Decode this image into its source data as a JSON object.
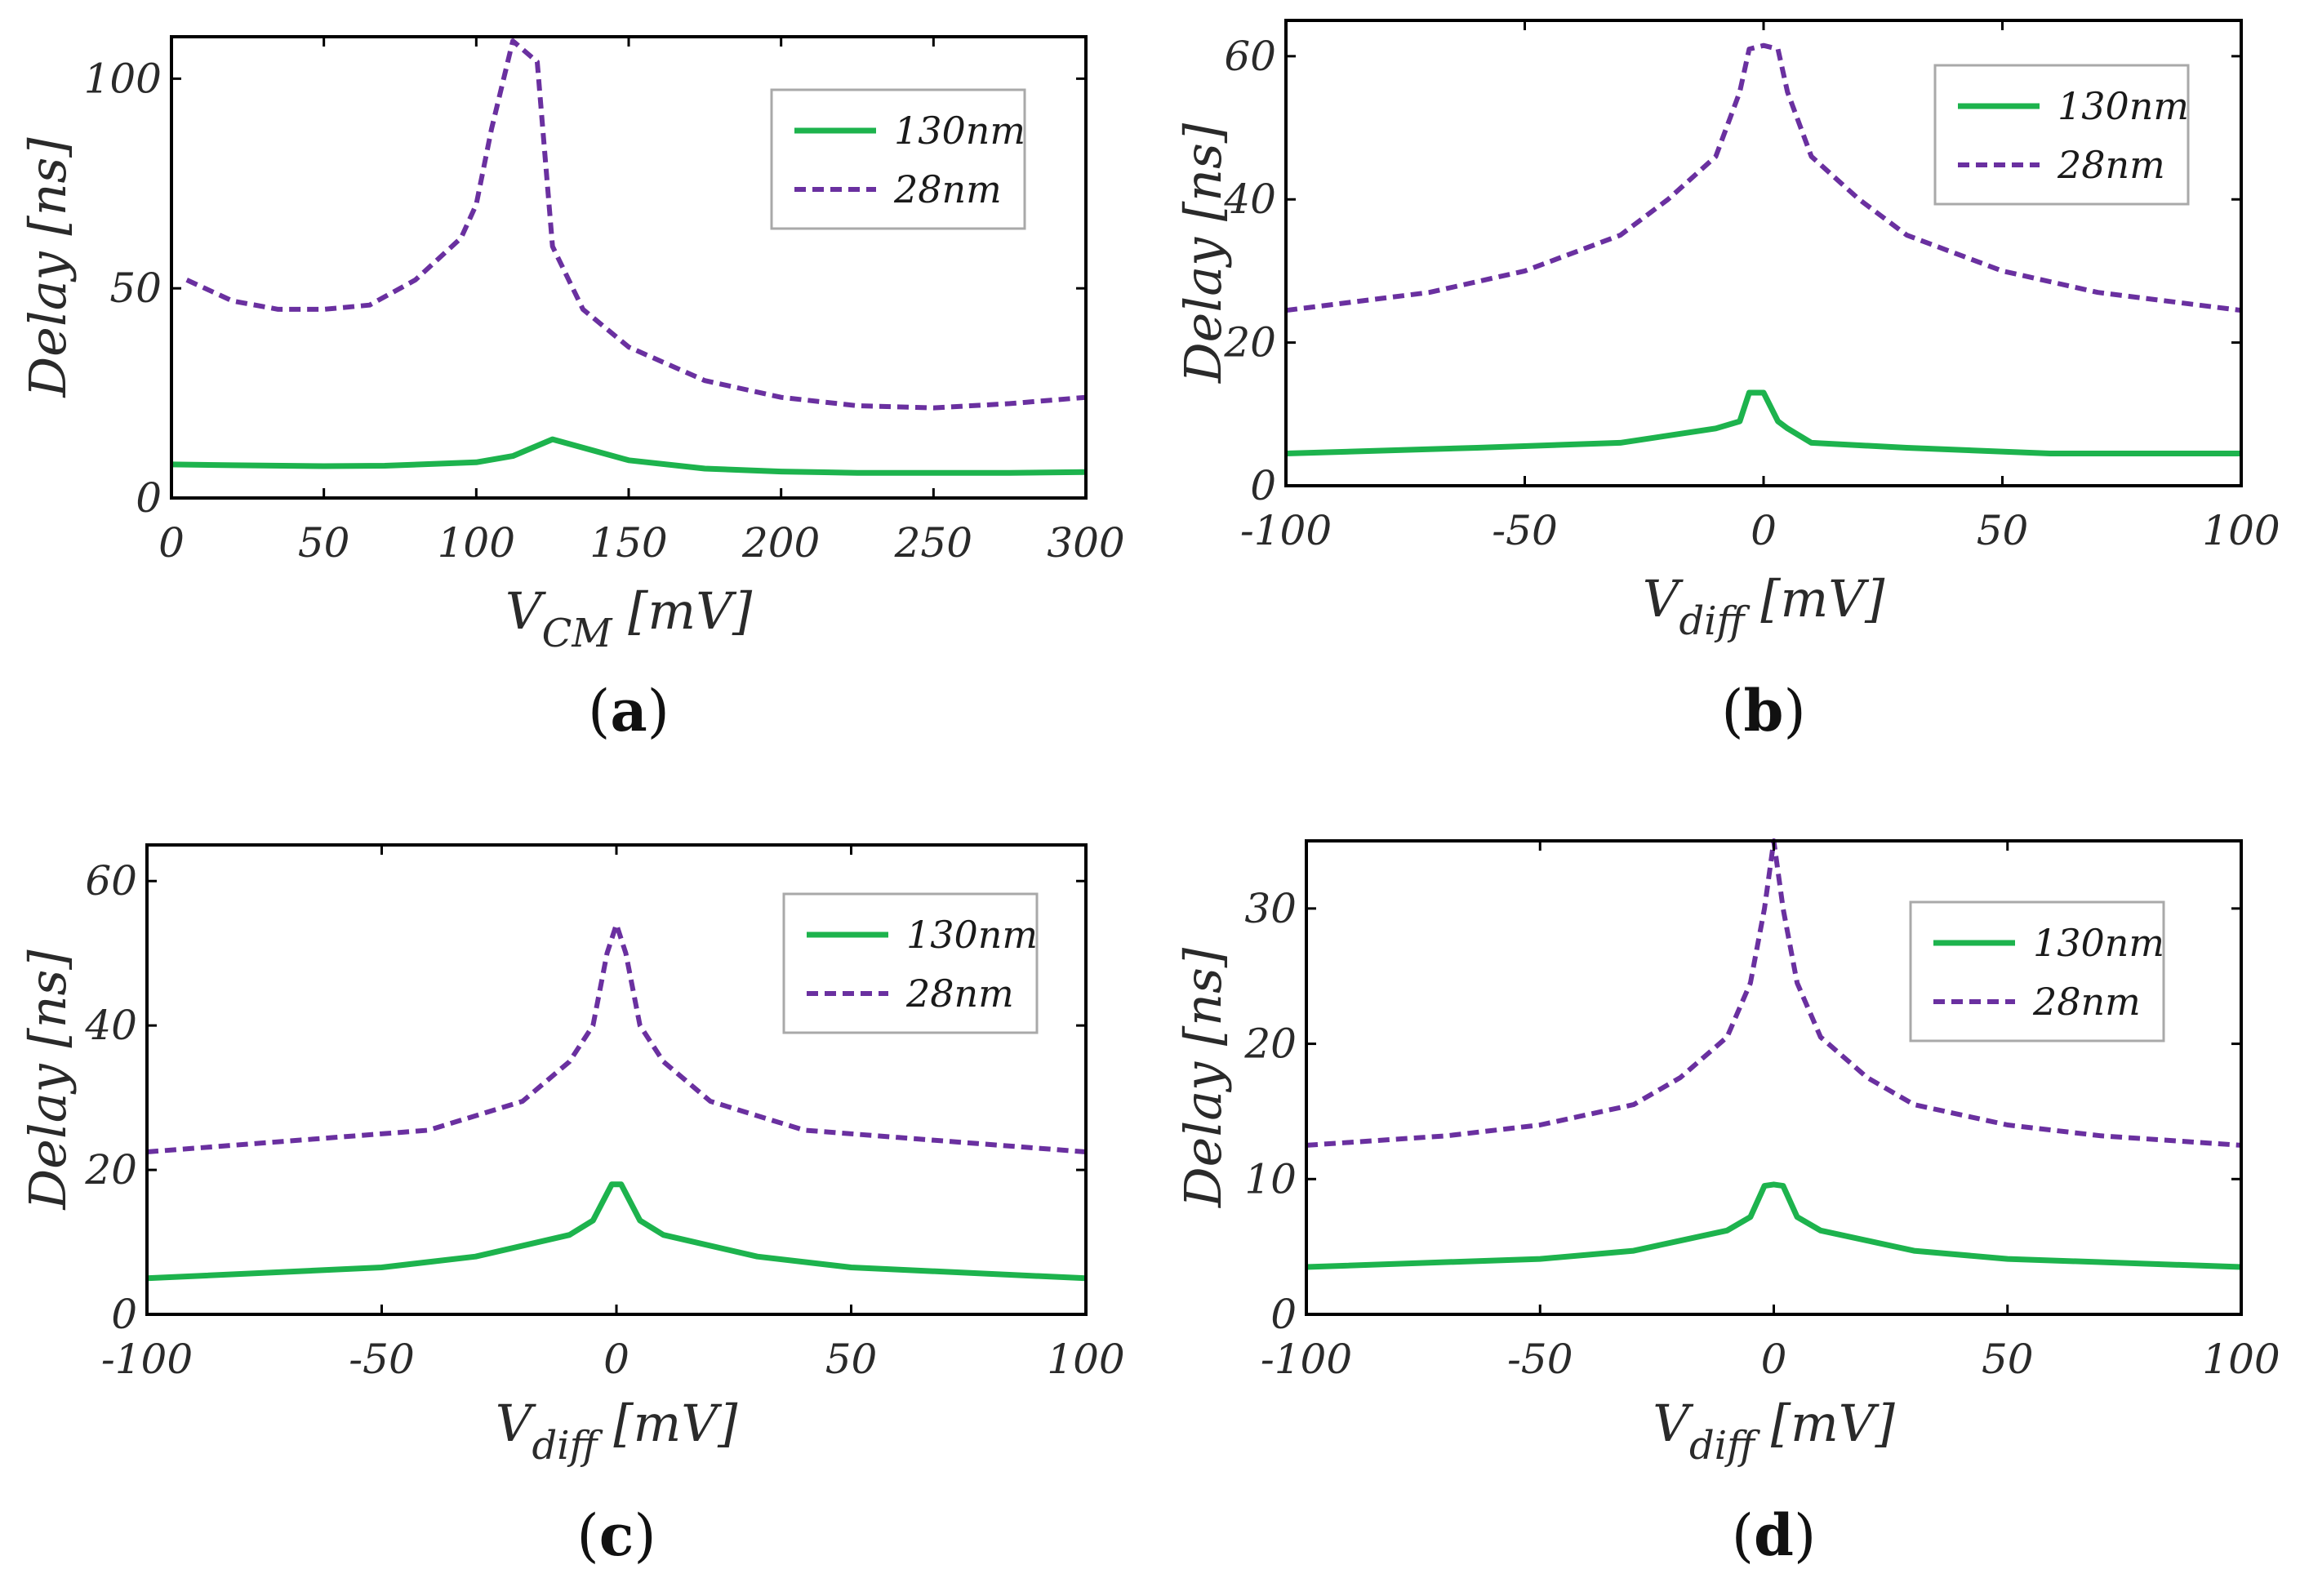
{
  "colors": {
    "s130": "#1db34d",
    "s28": "#6a30a0"
  },
  "chart_data": [
    {
      "panel": "(a)",
      "panel_letter": "a",
      "type": "line",
      "ylabel": "Delay [ns]",
      "xlabel_main": "V",
      "xlabel_sub": "CM",
      "xlabel_unit": " [mV]",
      "xlim": [
        0,
        300
      ],
      "ylim": [
        0,
        110
      ],
      "xticks": [
        0,
        50,
        100,
        150,
        200,
        250,
        300
      ],
      "xtick_labels": [
        "0",
        "50",
        "100",
        "150",
        "200",
        "250",
        "300"
      ],
      "yticks": [
        0,
        50,
        100
      ],
      "ytick_labels": [
        "0",
        "50",
        "100"
      ],
      "legend": [
        "130nm",
        "28nm"
      ],
      "legend_position": "top-right",
      "series": [
        {
          "name": "130nm",
          "style": "solid",
          "x": [
            0,
            20,
            50,
            70,
            100,
            112,
            125,
            135,
            150,
            175,
            200,
            225,
            250,
            275,
            300
          ],
          "y": [
            8,
            7.8,
            7.6,
            7.7,
            8.5,
            10,
            14,
            12,
            9,
            7,
            6.3,
            6,
            6,
            6,
            6.2
          ]
        },
        {
          "name": "28nm",
          "style": "dashed",
          "x": [
            5,
            20,
            35,
            50,
            65,
            80,
            95,
            100,
            105,
            112,
            120,
            125,
            135,
            150,
            175,
            200,
            225,
            250,
            275,
            300
          ],
          "y": [
            52,
            47,
            45,
            45,
            46,
            52,
            62,
            70,
            88,
            109,
            104,
            60,
            45,
            36,
            28,
            24,
            22,
            21.5,
            22.5,
            24
          ]
        }
      ]
    },
    {
      "panel": "(b)",
      "panel_letter": "b",
      "type": "line",
      "ylabel": "Delay [ns]",
      "xlabel_main": "V",
      "xlabel_sub": "diff",
      "xlabel_unit": " [mV]",
      "xlim": [
        -100,
        100
      ],
      "ylim": [
        0,
        65
      ],
      "xticks": [
        -100,
        -50,
        0,
        50,
        100
      ],
      "xtick_labels": [
        "-100",
        "-50",
        "0",
        "50",
        "100"
      ],
      "yticks": [
        0,
        20,
        40,
        60
      ],
      "ytick_labels": [
        "0",
        "20",
        "40",
        "60"
      ],
      "legend": [
        "130nm",
        "28nm"
      ],
      "legend_position": "top-right",
      "series": [
        {
          "name": "130nm",
          "style": "solid",
          "x": [
            -100,
            -60,
            -30,
            -10,
            -5,
            -3,
            0,
            3,
            5,
            10,
            30,
            60,
            100
          ],
          "y": [
            4.5,
            5.3,
            6,
            8,
            9,
            13,
            13,
            9,
            8,
            6,
            5.3,
            4.5,
            4.5
          ]
        },
        {
          "name": "28nm",
          "style": "dashed",
          "x": [
            -100,
            -70,
            -50,
            -30,
            -20,
            -10,
            -5,
            -3,
            0,
            3,
            5,
            10,
            20,
            30,
            50,
            70,
            100
          ],
          "y": [
            24.5,
            27,
            30,
            35,
            40,
            46,
            55,
            61,
            61.5,
            61,
            55,
            46,
            40,
            35,
            30,
            27,
            24.5
          ]
        }
      ]
    },
    {
      "panel": "(c)",
      "panel_letter": "c",
      "type": "line",
      "ylabel": "Delay [ns]",
      "xlabel_main": "V",
      "xlabel_sub": "diff",
      "xlabel_unit": " [mV]",
      "xlim": [
        -100,
        100
      ],
      "ylim": [
        0,
        65
      ],
      "xticks": [
        -100,
        -50,
        0,
        50,
        100
      ],
      "xtick_labels": [
        "-100",
        "-50",
        "0",
        "50",
        "100"
      ],
      "yticks": [
        0,
        20,
        40,
        60
      ],
      "ytick_labels": [
        "0",
        "20",
        "40",
        "60"
      ],
      "legend": [
        "130nm",
        "28nm"
      ],
      "legend_position": "top-right",
      "series": [
        {
          "name": "130nm",
          "style": "solid",
          "x": [
            -100,
            -50,
            -30,
            -10,
            -5,
            -1,
            1,
            5,
            10,
            30,
            50,
            100
          ],
          "y": [
            5,
            6.5,
            8,
            11,
            13,
            18,
            18,
            13,
            11,
            8,
            6.5,
            5
          ]
        },
        {
          "name": "28nm",
          "style": "dashed",
          "x": [
            -100,
            -60,
            -40,
            -20,
            -10,
            -5,
            -2,
            0,
            2,
            5,
            10,
            20,
            40,
            60,
            100
          ],
          "y": [
            22.5,
            24.5,
            25.5,
            29.5,
            35,
            40,
            50,
            54,
            50,
            40,
            35,
            29.5,
            25.5,
            24.5,
            22.5
          ]
        }
      ]
    },
    {
      "panel": "(d)",
      "panel_letter": "d",
      "type": "line",
      "ylabel": "Delay [ns]",
      "xlabel_main": "V",
      "xlabel_sub": "diff",
      "xlabel_unit": " [mV]",
      "xlim": [
        -100,
        100
      ],
      "ylim": [
        0,
        35
      ],
      "xticks": [
        -100,
        -50,
        0,
        50,
        100
      ],
      "xtick_labels": [
        "-100",
        "-50",
        "0",
        "50",
        "100"
      ],
      "yticks": [
        0,
        10,
        20,
        30
      ],
      "ytick_labels": [
        "0",
        "10",
        "20",
        "30"
      ],
      "legend": [
        "130nm",
        "28nm"
      ],
      "legend_position": "top-right",
      "series": [
        {
          "name": "130nm",
          "style": "solid",
          "x": [
            -100,
            -50,
            -30,
            -10,
            -5,
            -2,
            0,
            2,
            5,
            10,
            30,
            50,
            100
          ],
          "y": [
            3.5,
            4.1,
            4.7,
            6.2,
            7.2,
            9.5,
            9.6,
            9.5,
            7.2,
            6.2,
            4.7,
            4.1,
            3.5
          ]
        },
        {
          "name": "28nm",
          "style": "dashed",
          "x": [
            -100,
            -70,
            -50,
            -30,
            -20,
            -10,
            -5,
            -2,
            0,
            2,
            5,
            10,
            20,
            30,
            50,
            70,
            100
          ],
          "y": [
            12.5,
            13.2,
            14,
            15.5,
            17.5,
            20.5,
            24.5,
            30,
            35,
            30,
            24.5,
            20.5,
            17.5,
            15.5,
            14,
            13.2,
            12.5
          ]
        }
      ]
    }
  ]
}
